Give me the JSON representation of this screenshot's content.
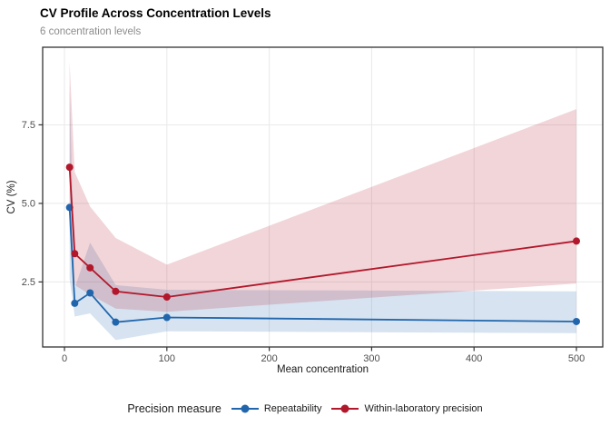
{
  "chart": {
    "title": "CV Profile Across Concentration Levels",
    "subtitle": "6 concentration levels",
    "xlabel": "Mean concentration",
    "ylabel": "CV (%)",
    "legend_title": "Precision measure"
  },
  "chart_data": {
    "type": "line",
    "title": "CV Profile Across Concentration Levels",
    "subtitle": "6 concentration levels",
    "xlabel": "Mean concentration",
    "ylabel": "CV (%)",
    "legend_title": "Precision measure",
    "legend_position": "bottom",
    "grid": true,
    "x": [
      5,
      10,
      25,
      50,
      100,
      500
    ],
    "series": [
      {
        "name": "Repeatability",
        "color": "#2166ac",
        "values": [
          4.87,
          1.82,
          2.15,
          1.22,
          1.37,
          1.24
        ],
        "ribbon_lo": [
          2.6,
          1.4,
          1.5,
          0.65,
          0.93,
          0.87
        ],
        "ribbon_hi": [
          8.8,
          2.3,
          3.75,
          2.4,
          2.25,
          2.2
        ]
      },
      {
        "name": "Within-laboratory precision",
        "color": "#b2182b",
        "values": [
          6.15,
          3.4,
          2.95,
          2.2,
          2.02,
          3.8
        ],
        "ribbon_lo": [
          4.2,
          2.4,
          2.1,
          1.65,
          1.55,
          2.45
        ],
        "ribbon_hi": [
          9.5,
          6.0,
          4.9,
          3.9,
          3.05,
          8.0
        ]
      }
    ],
    "ribbon_alpha": 0.18,
    "x_ticks": [
      0,
      100,
      200,
      300,
      400,
      500
    ],
    "x_tick_labels": [
      "0",
      "100",
      "200",
      "300",
      "400",
      "500"
    ],
    "y_ticks": [
      2.5,
      5.0,
      7.5
    ],
    "y_tick_labels": [
      "2.5",
      "5.0",
      "7.5"
    ],
    "xlim": [
      -21.3,
      525.7
    ],
    "ylim": [
      0.43,
      9.97
    ],
    "colors": {
      "panel_border": "#333333",
      "grid": "#e9e9e9",
      "tick": "#333333",
      "tick_label": "#4d4d4d",
      "background": "#ffffff"
    }
  }
}
